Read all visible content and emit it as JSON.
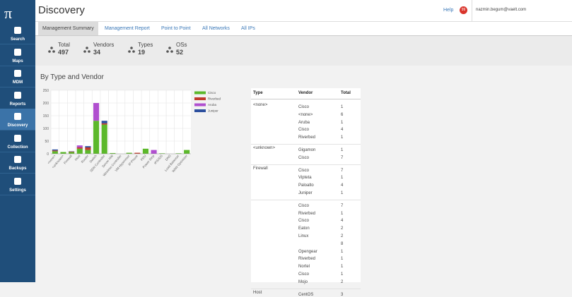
{
  "sidebar": {
    "logo": "π",
    "items": [
      "Search",
      "Maps",
      "MDM",
      "Reports",
      "Discovery",
      "Collection",
      "Backups",
      "Settings"
    ],
    "active": 4
  },
  "header": {
    "title": "Discovery",
    "help": "Help",
    "badge": "99",
    "user": "nazmin.begum@vaelt.com"
  },
  "tabs": {
    "items": [
      "Management Summary",
      "Management Report",
      "Point to Point",
      "All Networks",
      "All IPs"
    ],
    "active": 0
  },
  "stats": [
    {
      "label": "Total",
      "value": 497
    },
    {
      "label": "Vendors",
      "value": 34
    },
    {
      "label": "Types",
      "value": 19
    },
    {
      "label": "OSs",
      "value": 52
    }
  ],
  "section_title": "By Type and Vendor",
  "chart_data": {
    "type": "stacked_bar",
    "categories": [
      "<none>",
      "<unknown>",
      "Firewall",
      "Host",
      "Router",
      "Switch",
      "SDN Controller",
      "Server HW",
      "Wireless Controller",
      "VM Hypervisor",
      "IP Phone",
      "PDU",
      "Power Strip",
      "IPS/IDS",
      "DNS",
      "Load Balancer",
      "WAN Optimizer"
    ],
    "series": [
      {
        "name": "Cisco",
        "color": "#5cb82b",
        "values": [
          10,
          7,
          7,
          20,
          15,
          130,
          115,
          3,
          0,
          4,
          0,
          20,
          0,
          2,
          0,
          2,
          15
        ]
      },
      {
        "name": "Riverbed",
        "color": "#c0392b",
        "values": [
          3,
          0,
          2,
          5,
          10,
          0,
          5,
          0,
          0,
          0,
          4,
          0,
          0,
          0,
          0,
          0,
          0
        ]
      },
      {
        "name": "Aruba",
        "color": "#b04fcf",
        "values": [
          0,
          0,
          0,
          8,
          0,
          70,
          0,
          0,
          0,
          0,
          0,
          0,
          15,
          0,
          0,
          0,
          0
        ]
      },
      {
        "name": "Juniper",
        "color": "#2c4f9e",
        "values": [
          4,
          0,
          1,
          0,
          5,
          0,
          10,
          0,
          0,
          0,
          0,
          0,
          0,
          0,
          0,
          0,
          0
        ]
      }
    ],
    "ylim": [
      0,
      250
    ],
    "yticks": [
      0,
      50,
      100,
      150,
      200,
      250
    ],
    "grid": true
  },
  "table": {
    "headers": [
      "Type",
      "Vendor",
      "Total"
    ],
    "groups": [
      {
        "type": "<none>",
        "rows": [
          {
            "vendor": "Cisco",
            "total": 1
          },
          {
            "vendor": "<none>",
            "total": 6
          },
          {
            "vendor": "Aruba",
            "total": 1
          },
          {
            "vendor": "Cisco",
            "total": 4
          },
          {
            "vendor": "Riverbed",
            "total": 1
          }
        ]
      },
      {
        "type": "<unknown>",
        "rows": [
          {
            "vendor": "Gigamon",
            "total": 1
          },
          {
            "vendor": "Cisco",
            "total": 7
          }
        ]
      },
      {
        "type": "Firewall",
        "rows": [
          {
            "vendor": "Cisco",
            "total": 7
          },
          {
            "vendor": "Vipteta",
            "total": 1
          },
          {
            "vendor": "Paloalto",
            "total": 4
          },
          {
            "vendor": "Juniper",
            "total": 1
          }
        ]
      },
      {
        "rows": [
          {
            "vendor": "Cisco",
            "total": 7
          },
          {
            "vendor": "Riverbed",
            "total": 1
          },
          {
            "vendor": "Cisco",
            "total": 4
          },
          {
            "vendor": "Eaton",
            "total": 2
          },
          {
            "vendor": "Linux",
            "total": 2
          },
          {
            "total": 8
          },
          {
            "vendor": "Opengear",
            "total": 1
          },
          {
            "vendor": "Riverbed",
            "total": 1
          },
          {
            "vendor": "Nortel",
            "total": 1
          },
          {
            "vendor": "Cisco",
            "total": 1
          },
          {
            "vendor": "Mojo",
            "total": 2
          }
        ]
      },
      {
        "type": "Host",
        "rows": [
          {
            "vendor": "CentOS",
            "total": 3
          }
        ]
      }
    ]
  }
}
